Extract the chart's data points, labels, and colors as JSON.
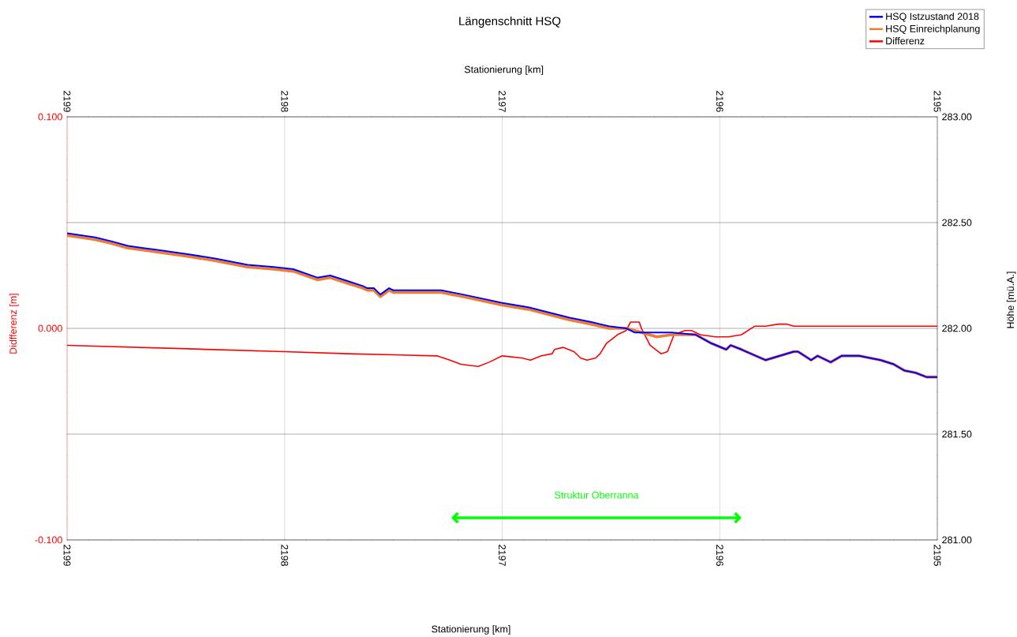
{
  "chart_data": {
    "type": "line",
    "title": "Längenschnitt HSQ",
    "annotations": [
      "Struktur Oberranna",
      "Stationierung [km]"
    ],
    "x2label": "Stationierung [km]",
    "ylabel": "Didfferenz [m]",
    "y2label": "Höhe [mü.A.]",
    "xlim": [
      2199,
      2195
    ],
    "xticks": [
      2199,
      2198,
      2197,
      2196,
      2195
    ],
    "x2lim": [
      2199,
      2195
    ],
    "x2ticks": [
      2199,
      2198,
      2197,
      2196,
      2195
    ],
    "ylim": [
      -0.1,
      0.1
    ],
    "yticks": [
      {
        "value": -0.1,
        "label": "-0.100"
      },
      {
        "value": 0,
        "label": "0.000"
      },
      {
        "value": 0.1,
        "label": "0.100"
      }
    ],
    "y2lim": [
      281,
      283
    ],
    "y2ticks": [
      {
        "value": 281,
        "label": "281.00"
      },
      {
        "value": 281.5,
        "label": "281.50"
      },
      {
        "value": 282,
        "label": "282.00"
      },
      {
        "value": 282.5,
        "label": "282.50"
      },
      {
        "value": 283,
        "label": "283.00"
      }
    ],
    "grid": true,
    "legend": "top right",
    "line_style": "solid",
    "series": [
      {
        "name": "HSQ Istzustand 2018",
        "color": "#0000ff",
        "axis": "y2",
        "x": [
          2199.0,
          2198.87,
          2198.79,
          2198.72,
          2198.65,
          2198.58,
          2198.44,
          2198.32,
          2198.17,
          2198.05,
          2197.96,
          2197.85,
          2197.79,
          2197.7,
          2197.64,
          2197.62,
          2197.59,
          2197.56,
          2197.52,
          2197.5,
          2197.28,
          2197.18,
          2197.0,
          2196.88,
          2196.69,
          2196.59,
          2196.51,
          2196.43,
          2196.39,
          2196.34,
          2196.22,
          2196.11,
          2196.04,
          2195.97,
          2195.95,
          2195.9,
          2195.79,
          2195.66,
          2195.64,
          2195.58,
          2195.55,
          2195.49,
          2195.44,
          2195.36,
          2195.26,
          2195.2,
          2195.15,
          2195.1,
          2195.05,
          2195.0
        ],
        "values": [
          282.45,
          282.43,
          282.41,
          282.39,
          282.38,
          282.37,
          282.35,
          282.33,
          282.3,
          282.29,
          282.28,
          282.24,
          282.25,
          282.22,
          282.2,
          282.19,
          282.19,
          282.16,
          282.19,
          282.18,
          282.18,
          282.16,
          282.12,
          282.1,
          282.05,
          282.03,
          282.01,
          282.0,
          281.98,
          281.98,
          281.98,
          281.97,
          281.93,
          281.9,
          281.92,
          281.9,
          281.85,
          281.89,
          281.89,
          281.85,
          281.87,
          281.84,
          281.87,
          281.87,
          281.85,
          281.83,
          281.8,
          281.79,
          281.77,
          281.77
        ]
      },
      {
        "name": "HSQ Einreichplanung",
        "color": "#ed7d31",
        "axis": "y2",
        "x": [
          2199.0,
          2198.87,
          2198.79,
          2198.72,
          2198.65,
          2198.58,
          2198.44,
          2198.32,
          2198.17,
          2198.05,
          2197.96,
          2197.85,
          2197.79,
          2197.7,
          2197.64,
          2197.62,
          2197.59,
          2197.56,
          2197.52,
          2197.5,
          2197.28,
          2197.18,
          2197.0,
          2196.88,
          2196.69,
          2196.59,
          2196.51,
          2196.43,
          2196.39,
          2196.29,
          2196.22,
          2196.11,
          2196.04,
          2195.97,
          2195.95,
          2195.9,
          2195.79,
          2195.66,
          2195.64,
          2195.58,
          2195.55,
          2195.49,
          2195.44,
          2195.36,
          2195.26,
          2195.2,
          2195.15,
          2195.1,
          2195.05,
          2195.0
        ],
        "values": [
          282.44,
          282.42,
          282.4,
          282.38,
          282.37,
          282.36,
          282.34,
          282.32,
          282.29,
          282.28,
          282.27,
          282.23,
          282.24,
          282.21,
          282.19,
          282.18,
          282.18,
          282.15,
          282.18,
          282.17,
          282.17,
          282.15,
          282.11,
          282.09,
          282.04,
          282.02,
          282.0,
          282.0,
          281.99,
          281.96,
          281.97,
          281.97,
          281.93,
          281.9,
          281.92,
          281.9,
          281.85,
          281.89,
          281.89,
          281.85,
          281.87,
          281.84,
          281.87,
          281.87,
          281.85,
          281.83,
          281.8,
          281.79,
          281.77,
          281.77
        ]
      },
      {
        "name": "Differenz",
        "color": "#ff0000",
        "x": [
          2199.0,
          2198.0,
          2197.71,
          2197.3,
          2197.24,
          2197.19,
          2197.11,
          2197.06,
          2197.0,
          2196.91,
          2196.87,
          2196.82,
          2196.77,
          2196.76,
          2196.72,
          2196.67,
          2196.64,
          2196.61,
          2196.57,
          2196.55,
          2196.52,
          2196.47,
          2196.43,
          2196.41,
          2196.37,
          2196.36,
          2196.32,
          2196.27,
          2196.24,
          2196.21,
          2196.16,
          2196.13,
          2196.09,
          2196.02,
          2195.96,
          2195.9,
          2195.84,
          2195.79,
          2195.73,
          2195.69,
          2195.66,
          2195.0
        ],
        "values": [
          -0.008,
          -0.011,
          -0.012,
          -0.013,
          -0.015,
          -0.017,
          -0.018,
          -0.016,
          -0.013,
          -0.014,
          -0.015,
          -0.013,
          -0.012,
          -0.01,
          -0.009,
          -0.011,
          -0.014,
          -0.015,
          -0.014,
          -0.012,
          -0.007,
          -0.003,
          -0.001,
          0.003,
          0.003,
          0.0,
          -0.008,
          -0.012,
          -0.011,
          -0.003,
          -0.001,
          -0.001,
          -0.003,
          -0.004,
          -0.004,
          -0.003,
          0.001,
          0.001,
          0.002,
          0.002,
          0.001,
          0.001
        ]
      }
    ]
  }
}
